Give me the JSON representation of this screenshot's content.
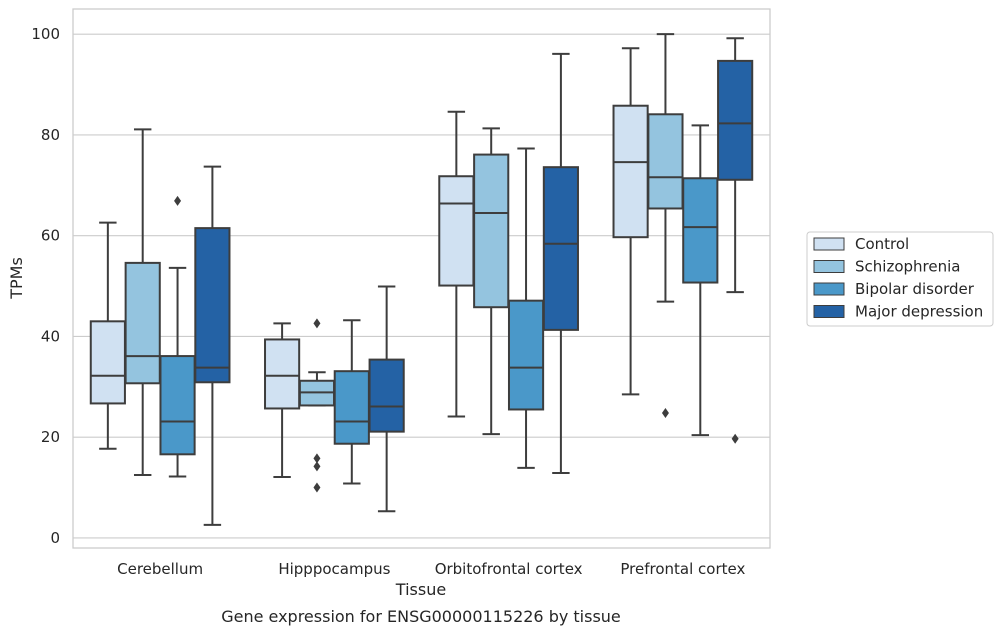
{
  "chart_data": {
    "type": "box",
    "title": "",
    "xlabel": "Tissue",
    "ylabel": "TPMs",
    "caption": "Gene expression for ENSG00000115226 by tissue",
    "ylim": [
      -2,
      105
    ],
    "yticks": [
      0,
      20,
      40,
      60,
      80,
      100
    ],
    "grid": "horizontal",
    "legend_position": "right",
    "categories": [
      "Cerebellum",
      "Hipppocampus",
      "Orbitofrontal cortex",
      "Prefrontal cortex"
    ],
    "series": [
      {
        "name": "Control",
        "color": "#d0e1f2",
        "boxes": [
          {
            "whisker_low": 17.7,
            "q1": 26.7,
            "median": 32.2,
            "q3": 43.0,
            "whisker_high": 62.6,
            "outliers": []
          },
          {
            "whisker_low": 12.1,
            "q1": 25.7,
            "median": 32.2,
            "q3": 39.4,
            "whisker_high": 42.6,
            "outliers": []
          },
          {
            "whisker_low": 24.1,
            "q1": 50.1,
            "median": 66.4,
            "q3": 71.8,
            "whisker_high": 84.6,
            "outliers": []
          },
          {
            "whisker_low": 28.5,
            "q1": 59.7,
            "median": 74.6,
            "q3": 85.8,
            "whisker_high": 97.2,
            "outliers": []
          }
        ]
      },
      {
        "name": "Schizophrenia",
        "color": "#94c4df",
        "boxes": [
          {
            "whisker_low": 12.5,
            "q1": 30.7,
            "median": 36.1,
            "q3": 54.6,
            "whisker_high": 81.1,
            "outliers": []
          },
          {
            "whisker_low": 26.3,
            "q1": 26.3,
            "median": 28.9,
            "q3": 31.2,
            "whisker_high": 32.9,
            "outliers": [
              10.0,
              14.2,
              15.8,
              42.6
            ]
          },
          {
            "whisker_low": 20.6,
            "q1": 45.8,
            "median": 64.5,
            "q3": 76.1,
            "whisker_high": 81.3,
            "outliers": []
          },
          {
            "whisker_low": 46.9,
            "q1": 65.4,
            "median": 71.6,
            "q3": 84.1,
            "whisker_high": 100.0,
            "outliers": [
              24.8
            ]
          }
        ]
      },
      {
        "name": "Bipolar disorder",
        "color": "#4a98c9",
        "boxes": [
          {
            "whisker_low": 12.2,
            "q1": 16.6,
            "median": 23.1,
            "q3": 36.1,
            "whisker_high": 53.6,
            "outliers": [
              66.9
            ]
          },
          {
            "whisker_low": 10.8,
            "q1": 18.7,
            "median": 23.1,
            "q3": 33.1,
            "whisker_high": 43.2,
            "outliers": []
          },
          {
            "whisker_low": 13.9,
            "q1": 25.5,
            "median": 33.8,
            "q3": 47.1,
            "whisker_high": 77.3,
            "outliers": []
          },
          {
            "whisker_low": 20.4,
            "q1": 50.7,
            "median": 61.7,
            "q3": 71.4,
            "whisker_high": 81.9,
            "outliers": []
          }
        ]
      },
      {
        "name": "Major depression",
        "color": "#2462a5",
        "boxes": [
          {
            "whisker_low": 2.6,
            "q1": 30.9,
            "median": 33.8,
            "q3": 61.5,
            "whisker_high": 73.7,
            "outliers": []
          },
          {
            "whisker_low": 5.3,
            "q1": 21.1,
            "median": 26.1,
            "q3": 35.4,
            "whisker_high": 49.9,
            "outliers": []
          },
          {
            "whisker_low": 12.9,
            "q1": 41.3,
            "median": 58.4,
            "q3": 73.6,
            "whisker_high": 96.1,
            "outliers": []
          },
          {
            "whisker_low": 48.8,
            "q1": 71.1,
            "median": 82.3,
            "q3": 94.7,
            "whisker_high": 99.2,
            "outliers": [
              19.7
            ]
          }
        ]
      }
    ]
  }
}
